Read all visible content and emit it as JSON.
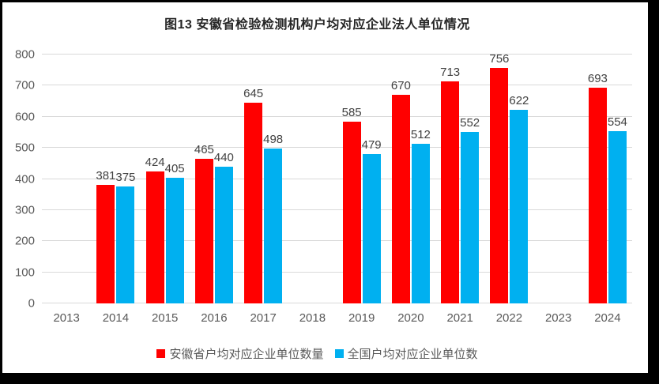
{
  "frame": {
    "border_color": "#000000",
    "background": "#ffffff"
  },
  "chart_data": {
    "type": "bar",
    "title": "图13 安徽省检验检测机构户均对应企业法人单位情况",
    "categories": [
      "2013",
      "2014",
      "2015",
      "2016",
      "2017",
      "2018",
      "2019",
      "2020",
      "2021",
      "2022",
      "2023",
      "2024"
    ],
    "series": [
      {
        "name": "安徽省户均对应企业单位数量",
        "color": "#ff0000",
        "values": [
          null,
          381,
          424,
          465,
          645,
          null,
          585,
          670,
          713,
          756,
          null,
          693
        ]
      },
      {
        "name": "全国户均对应企业单位数",
        "color": "#00b0f0",
        "values": [
          null,
          375,
          405,
          440,
          498,
          null,
          479,
          512,
          552,
          622,
          null,
          554
        ]
      }
    ],
    "ylim": [
      0,
      800
    ],
    "ytick_step": 100,
    "grid": true,
    "legend_position": "bottom",
    "gridline_color": "#d9d9d9",
    "axis_text_color": "#595959",
    "label_text_color": "#404040"
  }
}
